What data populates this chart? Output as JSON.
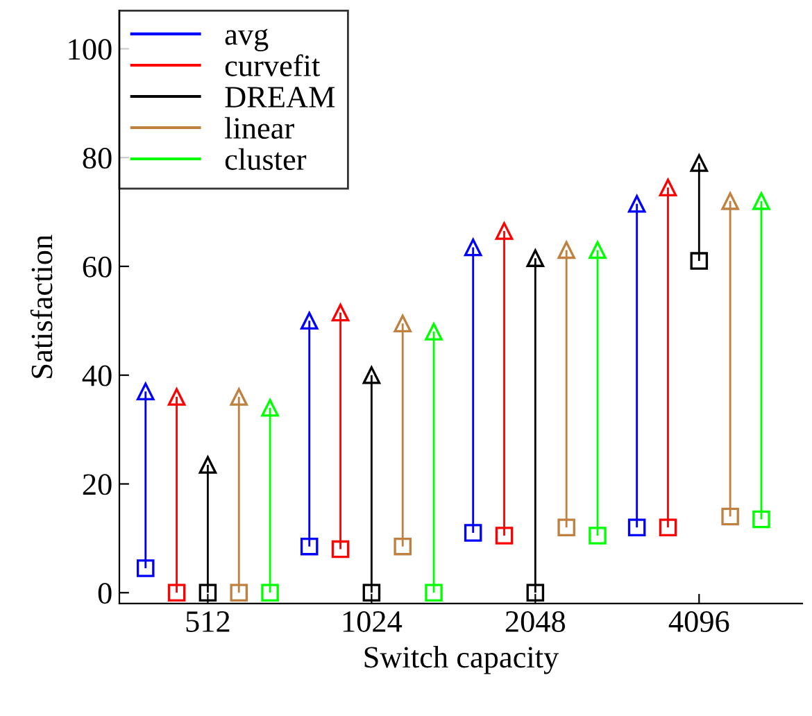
{
  "chart_data": {
    "type": "bar",
    "xlabel": "Switch capacity",
    "ylabel": "Satisfaction",
    "categories": [
      "512",
      "1024",
      "2048",
      "4096"
    ],
    "series": [
      {
        "name": "avg",
        "color": "#0000ff",
        "base": [
          4.5,
          8.5,
          11,
          12
        ],
        "values": [
          32.5,
          41.5,
          52.5,
          59.5
        ]
      },
      {
        "name": "curvefit",
        "color": "#ff0000",
        "base": [
          0,
          8,
          10.5,
          12
        ],
        "values": [
          36,
          43.5,
          56,
          62.5
        ]
      },
      {
        "name": "DREAM",
        "color": "#000000",
        "base": [
          0,
          0,
          0,
          61
        ],
        "values": [
          23.5,
          40,
          61.5,
          18
        ]
      },
      {
        "name": "linear",
        "color": "#bf8040",
        "base": [
          0,
          8.5,
          12,
          14
        ],
        "values": [
          36,
          41,
          51,
          58
        ]
      },
      {
        "name": "cluster",
        "color": "#00ff00",
        "base": [
          0,
          0,
          10.5,
          13.5
        ],
        "values": [
          34,
          48,
          52.5,
          58.5
        ]
      }
    ],
    "ylim": [
      -2,
      107
    ],
    "yticks": [
      0,
      20,
      40,
      60,
      80,
      100
    ],
    "grid": false,
    "legend": "top left",
    "marker": "square"
  }
}
